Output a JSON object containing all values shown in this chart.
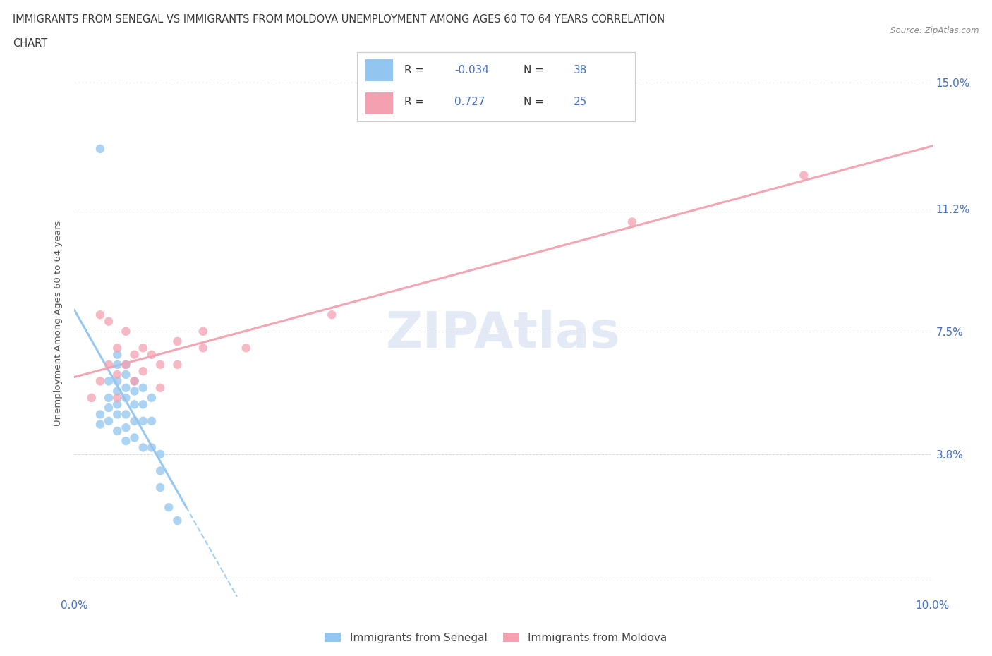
{
  "title_line1": "IMMIGRANTS FROM SENEGAL VS IMMIGRANTS FROM MOLDOVA UNEMPLOYMENT AMONG AGES 60 TO 64 YEARS CORRELATION",
  "title_line2": "CHART",
  "source": "Source: ZipAtlas.com",
  "ylabel": "Unemployment Among Ages 60 to 64 years",
  "xlim": [
    0.0,
    0.1
  ],
  "ylim": [
    -0.005,
    0.16
  ],
  "ytick_vals": [
    0.0,
    0.038,
    0.075,
    0.112,
    0.15
  ],
  "ytick_labels": [
    "",
    "3.8%",
    "7.5%",
    "11.2%",
    "15.0%"
  ],
  "xtick_vals": [
    0.0,
    0.02,
    0.04,
    0.06,
    0.08,
    0.1
  ],
  "xtick_labels": [
    "0.0%",
    "",
    "",
    "",
    "",
    "10.0%"
  ],
  "watermark": "ZIPAtlas",
  "legend_bottom_labels": [
    "Immigrants from Senegal",
    "Immigrants from Moldova"
  ],
  "senegal_R": -0.034,
  "senegal_N": 38,
  "moldova_R": 0.727,
  "moldova_N": 25,
  "senegal_color": "#92c5f0",
  "moldova_color": "#f4a0b0",
  "background_color": "#ffffff",
  "grid_color": "#d8d8d8",
  "title_color": "#3a3a3a",
  "axis_label_color": "#555555",
  "tick_label_color": "#4472c4",
  "R_value_color": "#4472c4",
  "legend_border_color": "#cccccc",
  "senegal_points": [
    [
      0.003,
      0.05
    ],
    [
      0.003,
      0.047
    ],
    [
      0.004,
      0.06
    ],
    [
      0.004,
      0.055
    ],
    [
      0.004,
      0.052
    ],
    [
      0.004,
      0.048
    ],
    [
      0.005,
      0.065
    ],
    [
      0.005,
      0.06
    ],
    [
      0.005,
      0.057
    ],
    [
      0.005,
      0.053
    ],
    [
      0.005,
      0.05
    ],
    [
      0.005,
      0.045
    ],
    [
      0.006,
      0.065
    ],
    [
      0.006,
      0.062
    ],
    [
      0.006,
      0.058
    ],
    [
      0.006,
      0.055
    ],
    [
      0.006,
      0.05
    ],
    [
      0.006,
      0.046
    ],
    [
      0.006,
      0.042
    ],
    [
      0.007,
      0.06
    ],
    [
      0.007,
      0.057
    ],
    [
      0.007,
      0.053
    ],
    [
      0.007,
      0.048
    ],
    [
      0.007,
      0.043
    ],
    [
      0.008,
      0.058
    ],
    [
      0.008,
      0.053
    ],
    [
      0.008,
      0.048
    ],
    [
      0.008,
      0.04
    ],
    [
      0.009,
      0.055
    ],
    [
      0.009,
      0.048
    ],
    [
      0.009,
      0.04
    ],
    [
      0.01,
      0.038
    ],
    [
      0.01,
      0.033
    ],
    [
      0.01,
      0.028
    ],
    [
      0.011,
      0.022
    ],
    [
      0.012,
      0.018
    ],
    [
      0.003,
      0.13
    ],
    [
      0.005,
      0.068
    ]
  ],
  "moldova_points": [
    [
      0.002,
      0.055
    ],
    [
      0.003,
      0.08
    ],
    [
      0.003,
      0.06
    ],
    [
      0.004,
      0.078
    ],
    [
      0.004,
      0.065
    ],
    [
      0.005,
      0.07
    ],
    [
      0.005,
      0.062
    ],
    [
      0.005,
      0.055
    ],
    [
      0.006,
      0.075
    ],
    [
      0.006,
      0.065
    ],
    [
      0.007,
      0.068
    ],
    [
      0.007,
      0.06
    ],
    [
      0.008,
      0.07
    ],
    [
      0.008,
      0.063
    ],
    [
      0.009,
      0.068
    ],
    [
      0.01,
      0.065
    ],
    [
      0.01,
      0.058
    ],
    [
      0.012,
      0.072
    ],
    [
      0.012,
      0.065
    ],
    [
      0.015,
      0.075
    ],
    [
      0.015,
      0.07
    ],
    [
      0.02,
      0.07
    ],
    [
      0.03,
      0.08
    ],
    [
      0.065,
      0.108
    ],
    [
      0.085,
      0.122
    ]
  ]
}
